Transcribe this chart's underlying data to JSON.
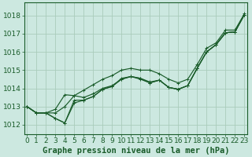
{
  "bg_color": "#cce8e0",
  "grid_color": "#aaccbb",
  "line_color": "#1a5c2a",
  "xlabel": "Graphe pression niveau de la mer (hPa)",
  "xlabel_fontsize": 7.5,
  "tick_fontsize": 6.5,
  "ylim": [
    1011.5,
    1018.7
  ],
  "xlim": [
    -0.3,
    23.3
  ],
  "yticks": [
    1012,
    1013,
    1014,
    1015,
    1016,
    1017,
    1018
  ],
  "xticks": [
    0,
    1,
    2,
    3,
    4,
    5,
    6,
    7,
    8,
    9,
    10,
    11,
    12,
    13,
    14,
    15,
    16,
    17,
    18,
    19,
    20,
    21,
    22,
    23
  ],
  "lines": [
    {
      "x": [
        0,
        1,
        2,
        3,
        4,
        5,
        6,
        7,
        8,
        9,
        10,
        11,
        12,
        13,
        14,
        15,
        16,
        17,
        18,
        19,
        20,
        21,
        22,
        23
      ],
      "y": [
        1013.0,
        1012.65,
        1012.65,
        1012.65,
        1013.0,
        1013.6,
        1013.9,
        1014.2,
        1014.5,
        1014.7,
        1015.0,
        1015.1,
        1015.0,
        1015.0,
        1014.8,
        1014.5,
        1014.3,
        1014.5,
        1015.3,
        1016.2,
        1016.5,
        1017.2,
        1017.2,
        1018.1
      ],
      "has_markers": true
    },
    {
      "x": [
        0,
        1,
        2,
        3,
        4,
        5,
        6,
        7,
        8,
        9,
        10,
        11,
        12,
        13,
        14,
        15,
        16,
        17,
        18,
        19,
        20,
        21,
        22,
        23
      ],
      "y": [
        1013.0,
        1012.65,
        1012.65,
        1012.35,
        1012.1,
        1013.2,
        1013.35,
        1013.55,
        1013.95,
        1014.1,
        1014.5,
        1014.65,
        1014.5,
        1014.3,
        1014.45,
        1014.05,
        1013.95,
        1014.15,
        1015.1,
        1016.0,
        1016.4,
        1017.05,
        1017.1,
        1018.05
      ],
      "has_markers": true
    },
    {
      "x": [
        0,
        1,
        2,
        3,
        4,
        5,
        6,
        7,
        8,
        9,
        10,
        11,
        12,
        13,
        14,
        15,
        16,
        17,
        18,
        19,
        20,
        21,
        22,
        23
      ],
      "y": [
        1013.0,
        1012.65,
        1012.65,
        1012.35,
        1012.1,
        1013.35,
        1013.35,
        1013.55,
        1013.95,
        1014.1,
        1014.55,
        1014.65,
        1014.55,
        1014.3,
        1014.45,
        1014.05,
        1013.95,
        1014.15,
        1015.1,
        1016.0,
        1016.4,
        1017.05,
        1017.1,
        1018.05
      ],
      "has_markers": true
    },
    {
      "x": [
        0,
        1,
        2,
        3,
        4,
        5,
        6,
        7,
        8,
        9,
        10,
        11,
        12,
        13,
        14,
        15,
        16,
        17,
        18,
        19,
        20,
        21,
        22,
        23
      ],
      "y": [
        1013.0,
        1012.65,
        1012.65,
        1012.85,
        1013.65,
        1013.6,
        1013.5,
        1013.7,
        1014.0,
        1014.15,
        1014.5,
        1014.65,
        1014.55,
        1014.35,
        1014.45,
        1014.05,
        1013.95,
        1014.15,
        1015.1,
        1016.0,
        1016.4,
        1017.05,
        1017.1,
        1018.05
      ],
      "has_markers": true
    }
  ]
}
